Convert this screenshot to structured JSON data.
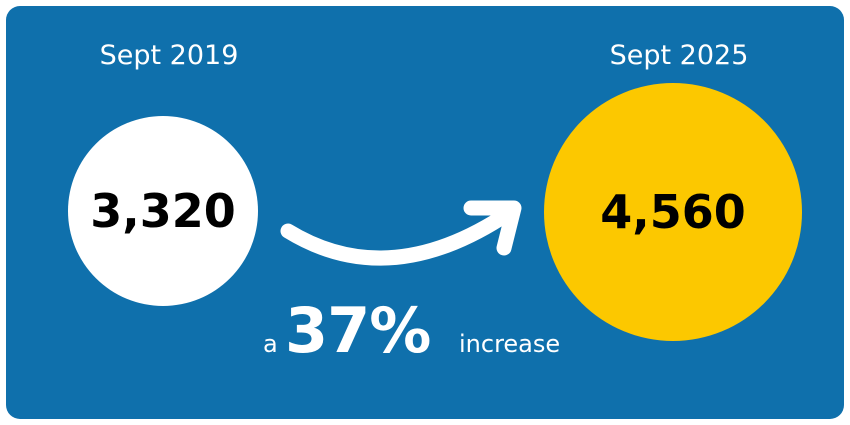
{
  "left": {
    "date": "Sept 2019",
    "value": "3,320"
  },
  "right": {
    "date": "Sept 2025",
    "value": "4,560"
  },
  "change": {
    "prefix": "a",
    "percent": "37%",
    "suffix": "increase"
  },
  "colors": {
    "background": "#0f70ac",
    "left_circle": "#ffffff",
    "right_circle": "#fcc800",
    "text": "#ffffff",
    "number_text": "#000000"
  },
  "icons": {
    "arrow": "curved-arrow-right-icon"
  }
}
